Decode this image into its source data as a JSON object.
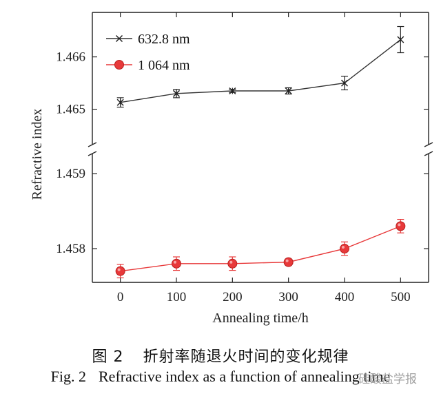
{
  "chart_data": {
    "type": "line",
    "xlabel": "Annealing time/h",
    "ylabel": "Refractive index",
    "x": [
      0,
      100,
      200,
      300,
      400,
      500
    ],
    "xlim": [
      -50,
      550
    ],
    "x_ticks": [
      "0",
      "100",
      "200",
      "300",
      "400",
      "500"
    ],
    "y_axis_break": true,
    "upper_segment": {
      "ylim": [
        1.46435,
        1.46685
      ],
      "ticks": [
        "1.465",
        "1.466"
      ]
    },
    "lower_segment": {
      "ylim": [
        1.45755,
        1.45925
      ],
      "ticks": [
        "1.458",
        "1.459"
      ]
    },
    "legend_position": "top-left",
    "series": [
      {
        "name": "632.8 nm",
        "marker": "x",
        "color": "#333333",
        "segment": "upper",
        "values": [
          1.46513,
          1.4653,
          1.46535,
          1.46535,
          1.4655,
          1.46633
        ],
        "errors": [
          9e-05,
          8e-05,
          3e-05,
          6e-05,
          0.00013,
          0.00025
        ]
      },
      {
        "name": "1 064 nm",
        "marker": "circle",
        "color": "#e8393a",
        "segment": "lower",
        "values": [
          1.4577,
          1.4578,
          1.4578,
          1.45782,
          1.458,
          1.4583
        ],
        "errors": [
          9e-05,
          9e-05,
          9e-05,
          4e-05,
          9e-05,
          9e-05
        ]
      }
    ]
  },
  "caption": {
    "cn_fig": "图 2",
    "cn_text": "折射率随退火时间的变化规律",
    "en_fig": "Fig. 2",
    "en_text": "Refractive index as a function of annealing time"
  },
  "watermark": "硅酸盐学报"
}
